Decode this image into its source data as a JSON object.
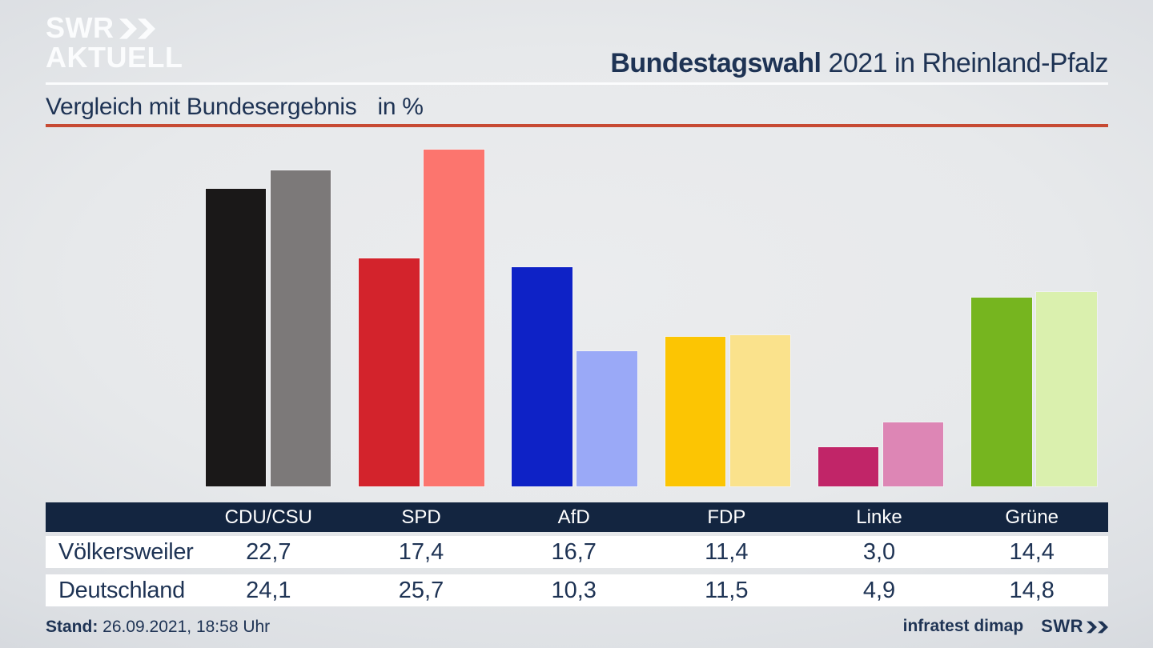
{
  "brand": {
    "logo_line1": "SWR",
    "logo_line2": "AKTUELL"
  },
  "header": {
    "title_bold": "Bundestagswahl",
    "title_rest": "2021 in Rheinland-Pfalz"
  },
  "subtitle": {
    "text": "Vergleich mit Bundesergebnis",
    "unit": "in %"
  },
  "chart_data": {
    "type": "bar",
    "grouped": true,
    "title": "Bundestagswahl 2021 in Rheinland-Pfalz",
    "subtitle": "Vergleich mit Bundesergebnis",
    "unit": "%",
    "categories": [
      "CDU/CSU",
      "SPD",
      "AfD",
      "FDP",
      "Linke",
      "Grüne"
    ],
    "series": [
      {
        "name": "Völkersweiler",
        "values": [
          22.7,
          17.4,
          16.7,
          11.4,
          3.0,
          14.4
        ],
        "colors": [
          "#1a1818",
          "#d3232c",
          "#0e22c6",
          "#fcc503",
          "#c12568",
          "#76b51f"
        ]
      },
      {
        "name": "Deutschland",
        "values": [
          24.1,
          25.7,
          10.3,
          11.5,
          4.9,
          14.8
        ],
        "colors": [
          "#7c7979",
          "#fc756e",
          "#9aa9f7",
          "#fae28c",
          "#dd86b5",
          "#daf0ae"
        ]
      }
    ],
    "ylim": [
      0,
      27
    ],
    "grid": false,
    "legend": "values shown in table below"
  },
  "table": {
    "columns": [
      "CDU/CSU",
      "SPD",
      "AfD",
      "FDP",
      "Linke",
      "Grüne"
    ],
    "rows": [
      {
        "label": "Völkersweiler",
        "values": [
          "22,7",
          "17,4",
          "16,7",
          "11,4",
          "3,0",
          "14,4"
        ]
      },
      {
        "label": "Deutschland",
        "values": [
          "24,1",
          "25,7",
          "10,3",
          "11,5",
          "4,9",
          "14,8"
        ]
      }
    ]
  },
  "footer": {
    "stand_label": "Stand:",
    "stand_value": "26.09.2021, 18:58 Uhr",
    "source": "infratest dimap",
    "brand": "SWR"
  },
  "colors": {
    "accent_line": "#c74a33",
    "navy_text": "#1e3354",
    "table_header_bg": "#132540",
    "header_divider": "#fbfcfd"
  }
}
